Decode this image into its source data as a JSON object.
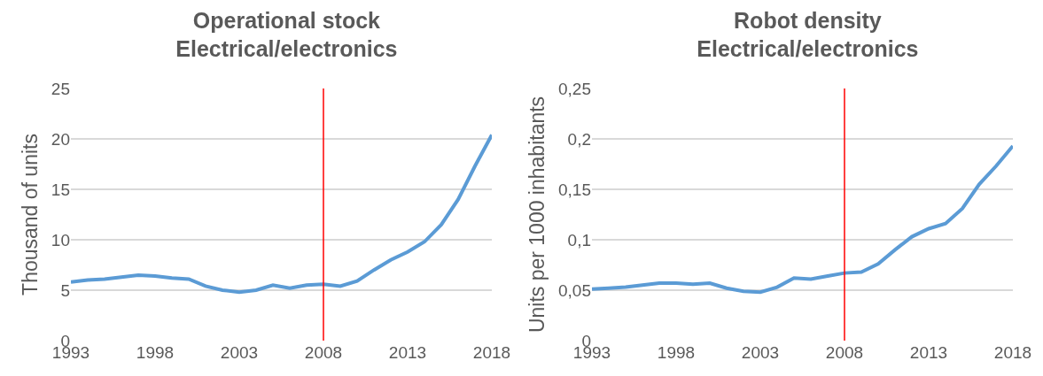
{
  "chart_data": [
    {
      "type": "line",
      "title": "Operational stock\nElectrical/electronics",
      "ylabel": "Thousand of units",
      "x": [
        1993,
        1994,
        1995,
        1996,
        1997,
        1998,
        1999,
        2000,
        2001,
        2002,
        2003,
        2004,
        2005,
        2006,
        2007,
        2008,
        2009,
        2010,
        2011,
        2012,
        2013,
        2014,
        2015,
        2016,
        2017,
        2018
      ],
      "series": [
        {
          "color": "#5b9bd5",
          "values": [
            5.8,
            6.0,
            6.1,
            6.3,
            6.5,
            6.4,
            6.2,
            6.1,
            5.4,
            5.0,
            4.8,
            5.0,
            5.5,
            5.2,
            5.5,
            5.6,
            5.4,
            5.9,
            7.0,
            8.0,
            8.8,
            9.8,
            11.5,
            14.0,
            17.3,
            20.4
          ]
        }
      ],
      "xlim": [
        1993,
        2018
      ],
      "xticks": [
        1993,
        1998,
        2003,
        2008,
        2013,
        2018
      ],
      "ylim": [
        0,
        25
      ],
      "yticks": [
        0,
        5,
        10,
        15,
        20,
        25
      ],
      "grid": "y",
      "marker": "none",
      "line_style": "solid",
      "ref_lines": [
        {
          "axis": "x",
          "value": 2008,
          "color": "#ff0000"
        }
      ]
    },
    {
      "type": "line",
      "title": "Robot density\nElectrical/electronics",
      "ylabel": "Units per 1000 inhabitants",
      "x": [
        1993,
        1994,
        1995,
        1996,
        1997,
        1998,
        1999,
        2000,
        2001,
        2002,
        2003,
        2004,
        2005,
        2006,
        2007,
        2008,
        2009,
        2010,
        2011,
        2012,
        2013,
        2014,
        2015,
        2016,
        2017,
        2018
      ],
      "series": [
        {
          "color": "#5b9bd5",
          "values": [
            0.051,
            0.052,
            0.053,
            0.055,
            0.057,
            0.057,
            0.056,
            0.057,
            0.052,
            0.049,
            0.048,
            0.053,
            0.062,
            0.061,
            0.064,
            0.067,
            0.068,
            0.076,
            0.09,
            0.103,
            0.111,
            0.116,
            0.131,
            0.155,
            0.173,
            0.193
          ]
        }
      ],
      "xlim": [
        1993,
        2018
      ],
      "xticks": [
        1993,
        1998,
        2003,
        2008,
        2013,
        2018
      ],
      "ylim": [
        0,
        0.25
      ],
      "yticks": [
        0,
        {
          "value": 0.05,
          "label": "0,05"
        },
        {
          "value": 0.1,
          "label": "0,1"
        },
        {
          "value": 0.15,
          "label": "0,15"
        },
        {
          "value": 0.2,
          "label": "0,2"
        },
        {
          "value": 0.25,
          "label": "0,25"
        }
      ],
      "grid": "y",
      "marker": "none",
      "line_style": "solid",
      "ref_lines": [
        {
          "axis": "x",
          "value": 2008,
          "color": "#ff0000"
        }
      ]
    }
  ]
}
